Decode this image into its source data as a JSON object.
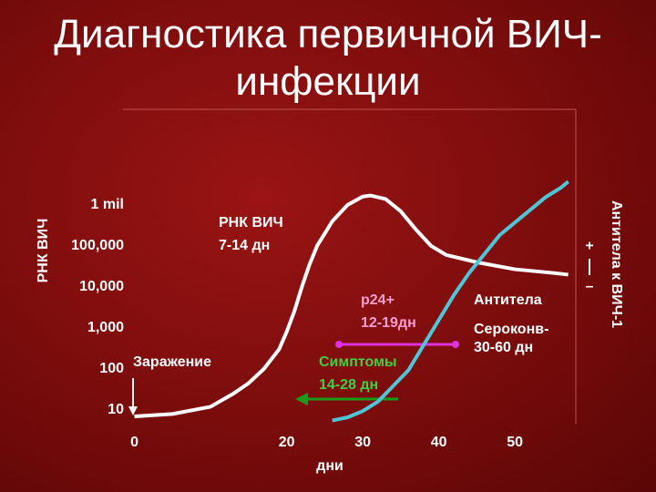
{
  "chart_data": {
    "type": "line",
    "title": "Диагностика первичной ВИЧ-инфекции",
    "ylabel": "РНК ВИЧ",
    "y2label": "Антитела к ВИЧ-1",
    "xlabel": "дни",
    "log_y": true,
    "xlim": [
      -1.5,
      58
    ],
    "xticks": [
      0,
      20,
      30,
      40,
      50
    ],
    "ylim": [
      4.64,
      215000000
    ],
    "yticks": [
      {
        "value": 1000000,
        "label": "1 mil"
      },
      {
        "value": 100000,
        "label": "100,000"
      },
      {
        "value": 10000,
        "label": "10,000"
      },
      {
        "value": 1000,
        "label": "1,000"
      },
      {
        "value": 100,
        "label": "100"
      },
      {
        "value": 10,
        "label": "10"
      }
    ],
    "y2lim": [
      0,
      100
    ],
    "y2ticks": [
      {
        "value": 56.5,
        "label": "+"
      },
      {
        "value": 43.5,
        "label": "–"
      }
    ],
    "series": [
      {
        "color": "#ffffff",
        "x": [
          0,
          5,
          10,
          13,
          15,
          17,
          19,
          20,
          21,
          22,
          23,
          24,
          26,
          28,
          30,
          31,
          33,
          35,
          37,
          39,
          41,
          45,
          50,
          55,
          57
        ],
        "values": [
          7,
          8,
          12,
          25,
          45,
          100,
          300,
          800,
          2500,
          10000,
          35000,
          100000,
          400000,
          1000000,
          1600000,
          1700000,
          1400000,
          700000,
          250000,
          100000,
          60000,
          40000,
          27000,
          22000,
          20000
        ]
      },
      {
        "color": "#4fc6d8",
        "axis": "y2",
        "x": [
          26,
          28,
          30,
          32,
          34,
          36,
          38,
          40,
          42,
          44,
          46,
          48,
          50,
          52,
          54,
          56,
          57
        ],
        "values": [
          1,
          2,
          4,
          7,
          12,
          17,
          25,
          33,
          41,
          48,
          54,
          60,
          64,
          68,
          72,
          75,
          77
        ]
      }
    ],
    "annotations": [
      "РНК ВИЧ",
      "7-14 дн",
      "р24+",
      "12-19дн",
      "Симптомы",
      "14-28 дн",
      "Антитела",
      "Сероконв-",
      "30-60 дн",
      "Заражение"
    ]
  }
}
